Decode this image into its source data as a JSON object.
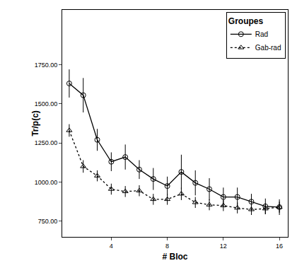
{
  "chart_data": {
    "type": "line",
    "x_label": "# Bloc",
    "y_label": "Tr/p(c)",
    "legend_title": "Groupes",
    "legend": "top-right",
    "grid": false,
    "x": [
      1,
      2,
      3,
      4,
      5,
      6,
      7,
      8,
      9,
      10,
      11,
      12,
      13,
      14,
      15,
      16
    ],
    "xlim": [
      0.5,
      16.6
    ],
    "xticks": [
      4,
      8,
      12,
      16
    ],
    "ylim": [
      650,
      2100
    ],
    "yticks": [
      {
        "value": 750,
        "label": "750.00"
      },
      {
        "value": 1000,
        "label": "1000.00"
      },
      {
        "value": 1250,
        "label": "1250.00"
      },
      {
        "value": 1500,
        "label": "1500.00"
      },
      {
        "value": 1750,
        "label": "1750.00"
      }
    ],
    "series": [
      {
        "name": "Rad",
        "color": "#000000",
        "marker": "circle-open",
        "line_style": "solid",
        "values": [
          1630,
          1555,
          1270,
          1130,
          1160,
          1080,
          1020,
          975,
          1065,
          995,
          955,
          905,
          905,
          875,
          845,
          840
        ],
        "error": [
          90,
          110,
          70,
          60,
          80,
          60,
          70,
          60,
          110,
          80,
          70,
          60,
          60,
          50,
          50,
          50
        ]
      },
      {
        "name": "Gab-rad",
        "color": "#000000",
        "marker": "triangle-up-open",
        "line_style": "dot",
        "values": [
          1330,
          1100,
          1040,
          955,
          940,
          945,
          890,
          890,
          925,
          870,
          855,
          850,
          835,
          825,
          830,
          840
        ],
        "error": [
          40,
          40,
          35,
          35,
          35,
          35,
          35,
          35,
          40,
          35,
          35,
          35,
          35,
          35,
          35,
          35
        ]
      }
    ]
  }
}
